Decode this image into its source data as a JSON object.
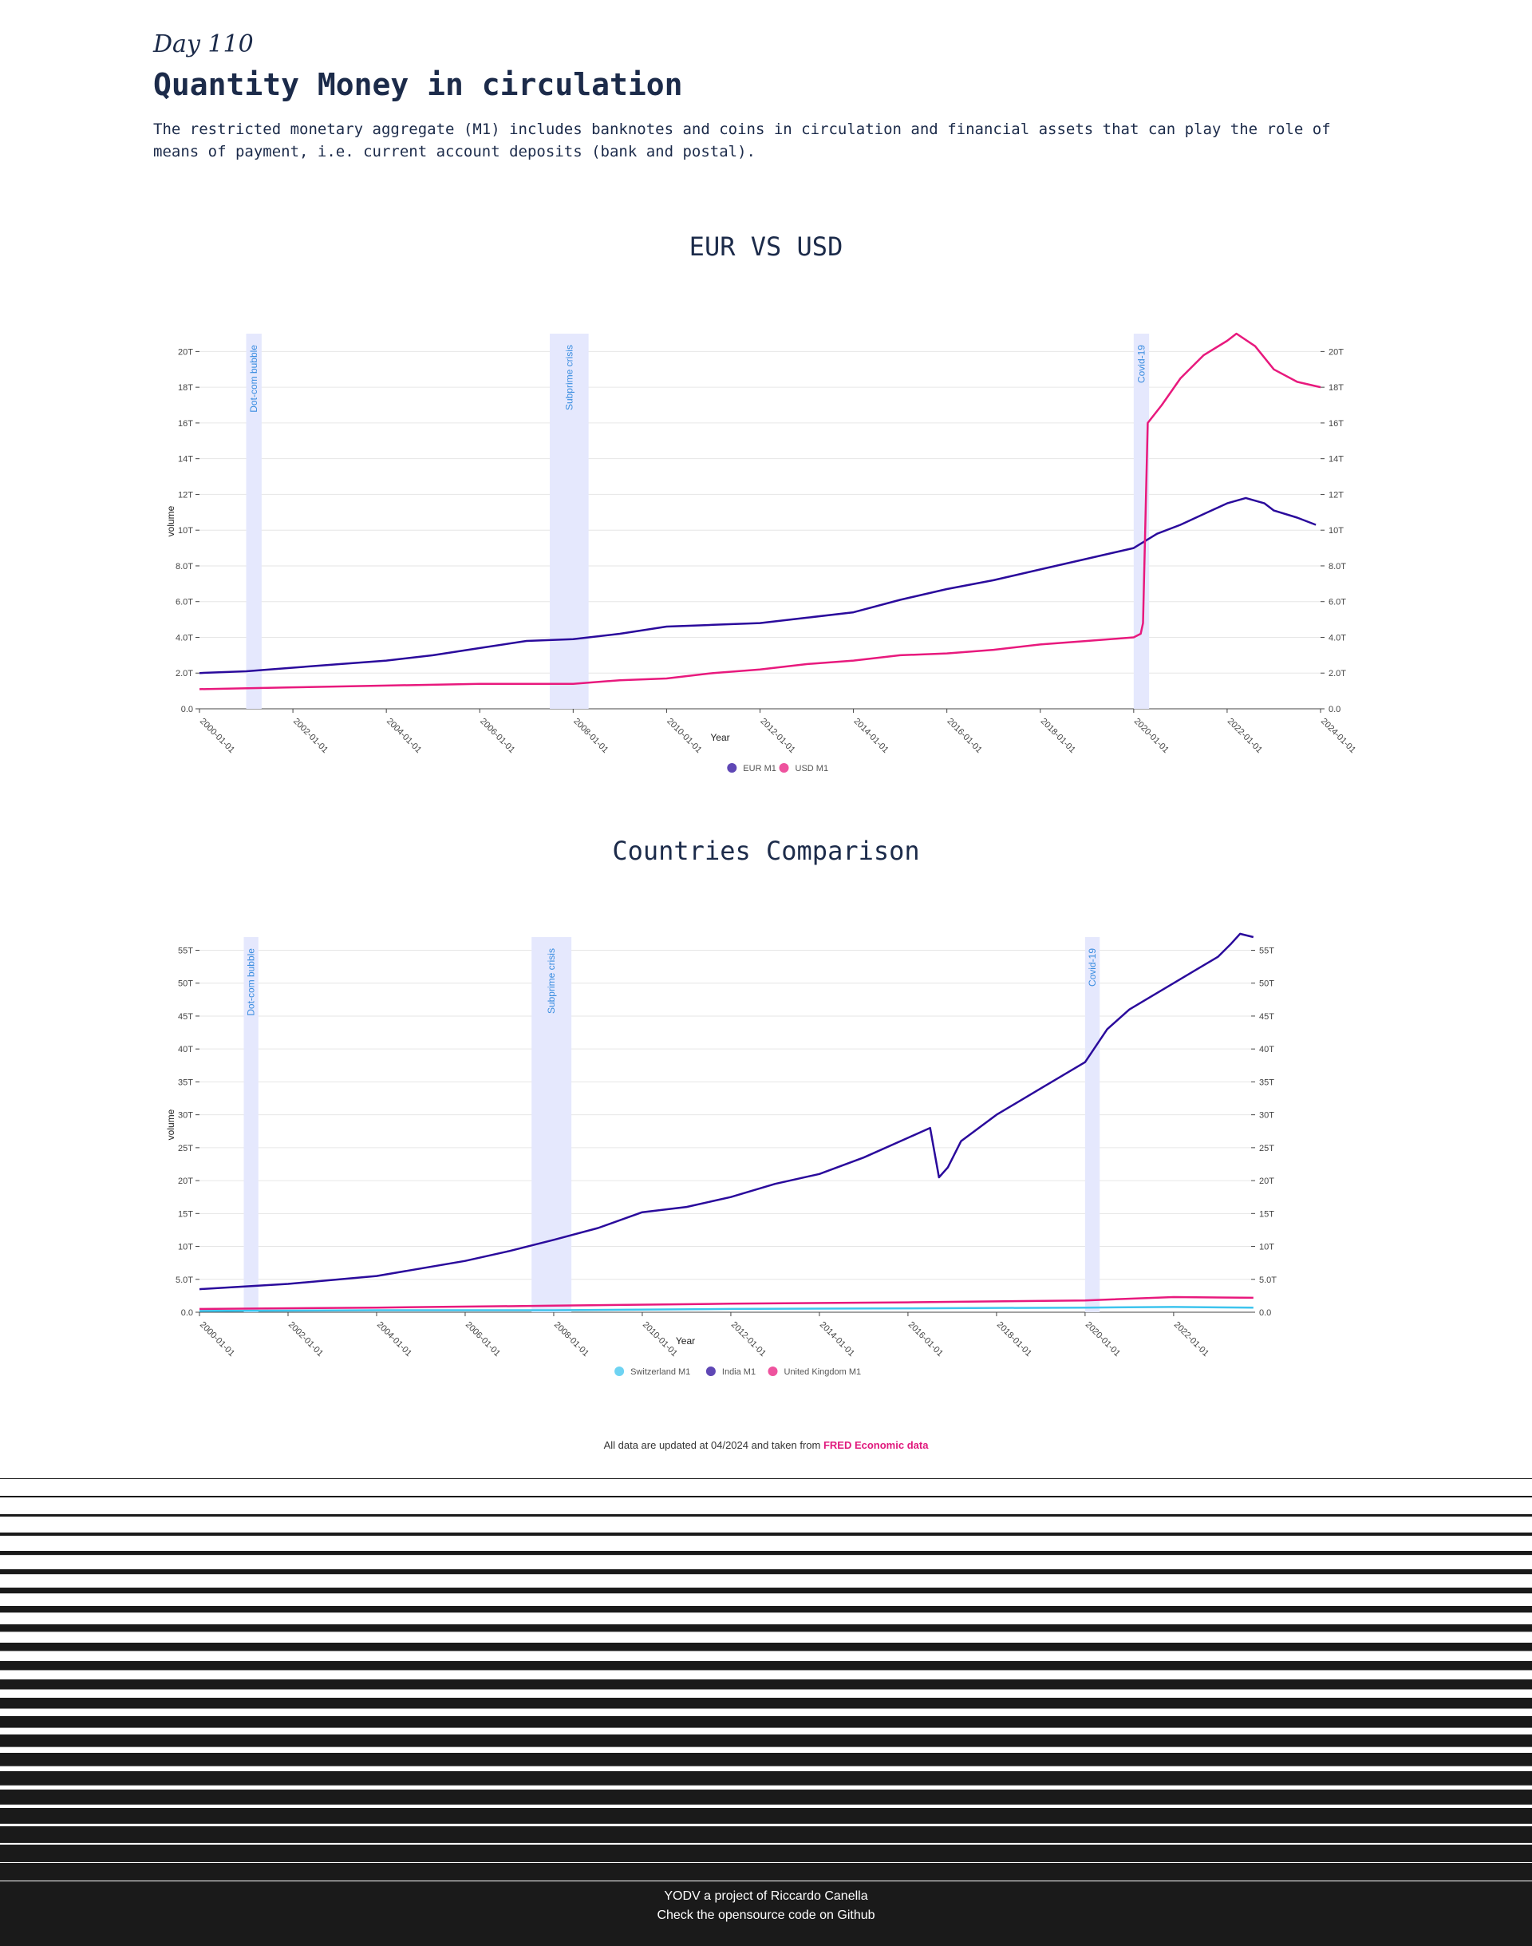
{
  "header": {
    "day": "Day 110",
    "title": "Quantity Money in circulation",
    "description": "The restricted monetary aggregate (M1) includes banknotes and coins in circulation and financial assets that can play the role of means of payment, i.e. current account deposits (bank and postal)."
  },
  "footnote": {
    "text": "All data are updated at 04/2024 and taken from",
    "link": "FRED Economic data"
  },
  "footer": {
    "line1": "YODV a project of Riccardo Canella",
    "line2": "Check the opensource code on Github"
  },
  "chart_data": [
    {
      "type": "line",
      "title": "EUR VS USD",
      "xlabel": "Year",
      "ylabel": "volume",
      "xlim": [
        "2000-01-01",
        "2024-01-01"
      ],
      "ylim": [
        0,
        21
      ],
      "y_unit": "T",
      "yticks": [
        "0.0",
        "2.0T",
        "4.0T",
        "6.0T",
        "8.0T",
        "10T",
        "12T",
        "14T",
        "16T",
        "18T",
        "20T"
      ],
      "xticks": [
        "2000-01-01",
        "2002-01-01",
        "2004-01-01",
        "2006-01-01",
        "2008-01-01",
        "2010-01-01",
        "2012-01-01",
        "2014-01-01",
        "2016-01-01",
        "2018-01-01",
        "2020-01-01",
        "2022-01-01",
        "2024-01-01"
      ],
      "grid": true,
      "legend": "bottom-center",
      "shapes": [
        {
          "label": "Dot-com bubble",
          "x0": 2001.0,
          "x1": 2001.33
        },
        {
          "label": "Subprime crisis",
          "x0": 2007.5,
          "x1": 2008.33
        },
        {
          "label": "Covid-19",
          "x0": 2020.0,
          "x1": 2020.33
        }
      ],
      "series": [
        {
          "name": "EUR M1",
          "color": "#2a0a9c",
          "x": [
            2000,
            2001,
            2002,
            2003,
            2004,
            2005,
            2006,
            2007,
            2008,
            2009,
            2010,
            2011,
            2012,
            2013,
            2014,
            2015,
            2016,
            2017,
            2018,
            2019,
            2020,
            2020.5,
            2021,
            2021.5,
            2022,
            2022.4,
            2022.8,
            2023,
            2023.5,
            2023.9
          ],
          "y": [
            2.0,
            2.1,
            2.3,
            2.5,
            2.7,
            3.0,
            3.4,
            3.8,
            3.9,
            4.2,
            4.6,
            4.7,
            4.8,
            5.1,
            5.4,
            6.1,
            6.7,
            7.2,
            7.8,
            8.4,
            9.0,
            9.8,
            10.3,
            10.9,
            11.5,
            11.8,
            11.5,
            11.1,
            10.7,
            10.3
          ]
        },
        {
          "name": "USD M1",
          "color": "#e8197d",
          "x": [
            2000,
            2002,
            2004,
            2006,
            2008,
            2009,
            2010,
            2011,
            2012,
            2013,
            2014,
            2015,
            2016,
            2017,
            2018,
            2019,
            2020,
            2020.15,
            2020.2,
            2020.3,
            2020.6,
            2021,
            2021.5,
            2022,
            2022.2,
            2022.6,
            2023,
            2023.5,
            2024
          ],
          "y": [
            1.1,
            1.2,
            1.3,
            1.4,
            1.4,
            1.6,
            1.7,
            2.0,
            2.2,
            2.5,
            2.7,
            3.0,
            3.1,
            3.3,
            3.6,
            3.8,
            4.0,
            4.2,
            4.8,
            16.0,
            17.0,
            18.5,
            19.8,
            20.6,
            21.0,
            20.3,
            19.0,
            18.3,
            18.0
          ]
        }
      ]
    },
    {
      "type": "line",
      "title": "Countries Comparison",
      "xlabel": "Year",
      "ylabel": "volume",
      "xlim": [
        "2000-01-01",
        "2023-10-01"
      ],
      "ylim": [
        0,
        57
      ],
      "y_unit": "T",
      "yticks": [
        "0.0",
        "5.0T",
        "10T",
        "15T",
        "20T",
        "25T",
        "30T",
        "35T",
        "40T",
        "45T",
        "50T",
        "55T"
      ],
      "xticks": [
        "2000-01-01",
        "2002-01-01",
        "2004-01-01",
        "2006-01-01",
        "2008-01-01",
        "2010-01-01",
        "2012-01-01",
        "2014-01-01",
        "2016-01-01",
        "2018-01-01",
        "2020-01-01",
        "2022-01-01"
      ],
      "grid": true,
      "legend": "bottom-center",
      "shapes": [
        {
          "label": "Dot-com bubble",
          "x0": 2001.0,
          "x1": 2001.33
        },
        {
          "label": "Subprime crisis",
          "x0": 2007.5,
          "x1": 2008.4
        },
        {
          "label": "Covid-19",
          "x0": 2020.0,
          "x1": 2020.33
        }
      ],
      "series": [
        {
          "name": "Switzerland M1",
          "color": "#3ec4ee",
          "x": [
            2000,
            2004,
            2008,
            2012,
            2016,
            2020,
            2022,
            2023.8
          ],
          "y": [
            0.2,
            0.3,
            0.3,
            0.5,
            0.6,
            0.7,
            0.8,
            0.7
          ]
        },
        {
          "name": "India M1",
          "color": "#2a0a9c",
          "x": [
            2000,
            2002,
            2004,
            2006,
            2007,
            2008,
            2009,
            2010,
            2011,
            2012,
            2013,
            2014,
            2015,
            2016,
            2016.5,
            2016.7,
            2016.9,
            2017.2,
            2018,
            2019,
            2020,
            2020.5,
            2021,
            2021.5,
            2022,
            2022.5,
            2023,
            2023.3,
            2023.5,
            2023.8
          ],
          "y": [
            3.5,
            4.3,
            5.5,
            7.8,
            9.3,
            11.0,
            12.8,
            15.2,
            16.0,
            17.5,
            19.5,
            21.0,
            23.5,
            26.5,
            28.0,
            20.5,
            22.0,
            26.0,
            30.0,
            34.0,
            38.0,
            43.0,
            46.0,
            48.0,
            50.0,
            52.0,
            54.0,
            56.0,
            57.5,
            57.0
          ]
        },
        {
          "name": "United Kingdom M1",
          "color": "#e8197d",
          "x": [
            2000,
            2004,
            2008,
            2012,
            2016,
            2020,
            2022,
            2023.8
          ],
          "y": [
            0.5,
            0.7,
            1.0,
            1.3,
            1.5,
            1.8,
            2.3,
            2.2
          ]
        }
      ]
    }
  ]
}
